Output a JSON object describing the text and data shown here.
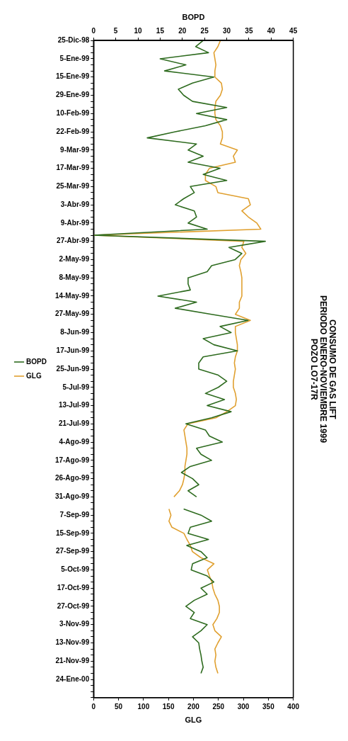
{
  "chart_data": {
    "type": "line",
    "title": "CONSUMO DE GAS LIFT\nPERIODO ENERO-NOVIEMBRE 1999\nPOZO LO7-17R",
    "orientation": "horizontal",
    "xlabel": "GLG",
    "x2label": "BOPD",
    "xlim": [
      0,
      400
    ],
    "xticks": [
      0,
      50,
      100,
      150,
      200,
      250,
      300,
      350,
      400
    ],
    "x2lim": [
      0,
      45
    ],
    "x2ticks": [
      0,
      5,
      10,
      15,
      20,
      25,
      30,
      35,
      40,
      45
    ],
    "grid": false,
    "legend": "left",
    "marker": "none",
    "categories": [
      "25-Dic-98",
      null,
      null,
      "5-Ene-99",
      null,
      null,
      "15-Ene-99",
      null,
      null,
      "29-Ene-99",
      null,
      null,
      "10-Feb-99",
      null,
      null,
      "22-Feb-99",
      null,
      null,
      "9-Mar-99",
      null,
      null,
      "17-Mar-99",
      null,
      null,
      "25-Mar-99",
      null,
      null,
      "3-Abr-99",
      null,
      null,
      "9-Abr-99",
      null,
      null,
      "27-Abr-99",
      null,
      null,
      "2-May-99",
      null,
      null,
      "8-May-99",
      null,
      null,
      "14-May-99",
      null,
      null,
      "27-May-99",
      null,
      null,
      "8-Jun-99",
      null,
      null,
      "17-Jun-99",
      null,
      null,
      "25-Jun-99",
      null,
      null,
      "5-Jul-99",
      null,
      null,
      "13-Jul-99",
      null,
      null,
      "21-Jul-99",
      null,
      null,
      "4-Ago-99",
      null,
      null,
      "17-Ago-99",
      null,
      null,
      "26-Ago-99",
      null,
      null,
      "31-Ago-99",
      null,
      null,
      "7-Sep-99",
      null,
      null,
      "15-Sep-99",
      null,
      null,
      "27-Sep-99",
      null,
      null,
      "5-Oct-99",
      null,
      null,
      "17-Oct-99",
      null,
      null,
      "27-Oct-99",
      null,
      null,
      "3-Nov-99",
      null,
      null,
      "13-Nov-99",
      null,
      null,
      "21-Nov-99",
      null,
      null,
      "24-Ene-00",
      null,
      null,
      null
    ],
    "series": [
      {
        "name": "BOPD",
        "color": "#2e6b1f",
        "axis": "x2",
        "values": [
          24.7,
          23,
          25.9,
          15,
          20.8,
          16,
          27.1,
          22.3,
          19.1,
          20.3,
          22.3,
          30,
          23.2,
          30,
          25.2,
          18.4,
          12.1,
          23.2,
          21.3,
          24.7,
          21.3,
          28.5,
          24.7,
          30,
          21.8,
          22.7,
          20.3,
          18.4,
          22.7,
          23.2,
          21.3,
          25.6,
          0,
          38.7,
          30.5,
          33.4,
          31.9,
          26.6,
          25.6,
          21.3,
          21.3,
          21.8,
          14.5,
          23.2,
          18.4,
          26.6,
          34.8,
          28.5,
          31,
          24.7,
          27.1,
          32.4,
          24.7,
          23.7,
          23.7,
          28.1,
          30,
          28.1,
          25.2,
          29.5,
          25.6,
          31,
          26.6,
          20.8,
          25.2,
          26.1,
          29,
          23.2,
          24.2,
          26.6,
          21.8,
          19.8,
          22.3,
          23.7,
          21.3,
          23.2,
          null,
          20.3,
          24.2,
          26.6,
          21.8,
          21.3,
          25.9,
          21,
          24.2,
          25.6,
          22.3,
          22,
          25.6,
          27.1,
          24.2,
          25.6,
          22.7,
          20.8,
          22.7,
          21.8,
          25.6,
          24.2,
          22.3,
          23.7,
          23.9,
          24.2,
          24.4,
          24.7,
          24.2,
          null,
          null,
          null,
          null
        ]
      },
      {
        "name": "GLG",
        "color": "#e0a030",
        "values": [
          254,
          249,
          241,
          243,
          245,
          243,
          243,
          256,
          258,
          254,
          245,
          243,
          243,
          245,
          254,
          258,
          258,
          254,
          288,
          280,
          284,
          232,
          224,
          224,
          245,
          249,
          310,
          314,
          297,
          310,
          327,
          335,
          0,
          301,
          297,
          305,
          295,
          292,
          295,
          297,
          297,
          297,
          297,
          292,
          292,
          284,
          314,
          284,
          284,
          286,
          288,
          288,
          284,
          282,
          284,
          282,
          280,
          280,
          284,
          286,
          284,
          267,
          245,
          189,
          181,
          183,
          185,
          187,
          187,
          185,
          183,
          183,
          181,
          178,
          172,
          161,
          null,
          151,
          155,
          151,
          157,
          181,
          187,
          194,
          198,
          215,
          241,
          228,
          232,
          237,
          239,
          243,
          249,
          252,
          252,
          247,
          239,
          243,
          256,
          249,
          243,
          245,
          243,
          245,
          249,
          null,
          null,
          null,
          null
        ]
      }
    ]
  }
}
